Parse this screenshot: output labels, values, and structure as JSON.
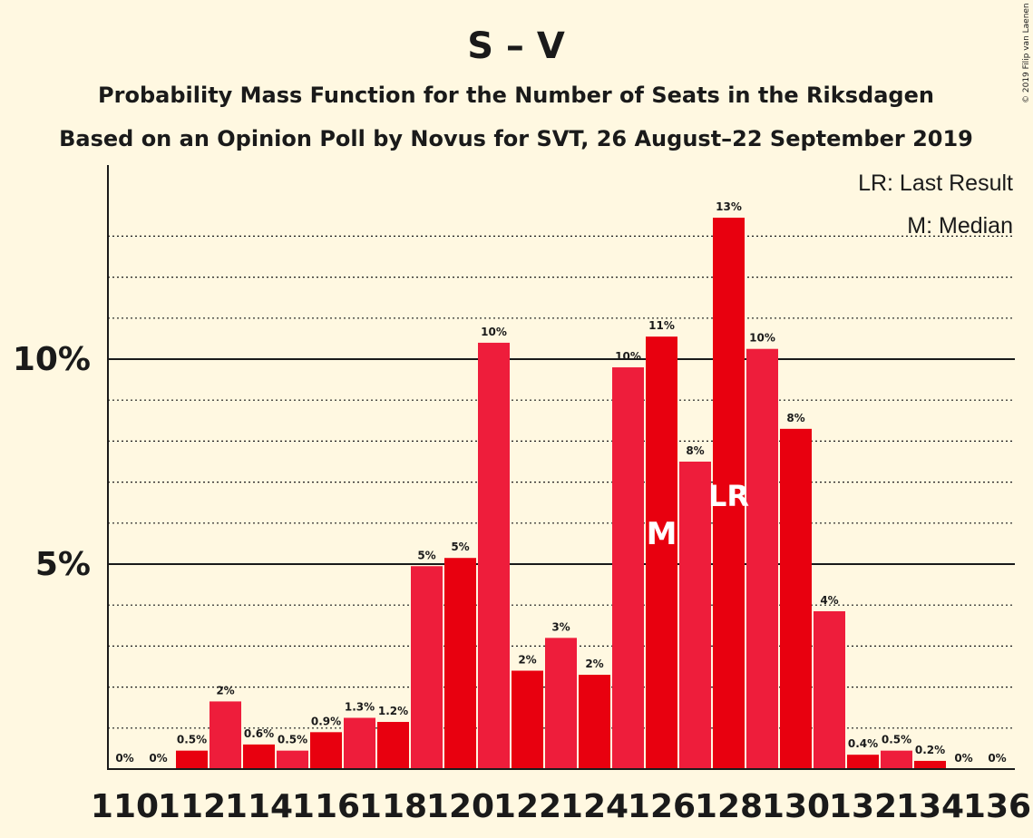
{
  "header": {
    "title": "S – V",
    "subtitle": "Probability Mass Function for the Number of Seats in the Riksdagen",
    "subtitle2": "Based on an Opinion Poll by Novus for SVT, 26 August–22 September 2019",
    "copyright": "© 2019 Filip van Laenen"
  },
  "legend": {
    "lr": "LR: Last Result",
    "m": "M: Median"
  },
  "chart_data": {
    "type": "bar",
    "title": "S – V",
    "ylim": [
      0,
      14.75
    ],
    "y_major_ticks": [
      5,
      10
    ],
    "y_major_labels": [
      "5%",
      "10%"
    ],
    "y_minor_ticks": [
      1,
      2,
      3,
      4,
      6,
      7,
      8,
      9,
      11,
      12,
      13
    ],
    "grid": true,
    "legend_placement": "top-right",
    "x_tick_labels": [
      "110",
      "112",
      "114",
      "116",
      "118",
      "120",
      "122",
      "124",
      "126",
      "128",
      "130",
      "132",
      "134",
      "136"
    ],
    "bar_colors": [
      "#E8000F",
      "#EE1D3B"
    ],
    "categories": [
      110,
      111,
      112,
      113,
      114,
      115,
      116,
      117,
      118,
      119,
      120,
      121,
      122,
      123,
      124,
      125,
      126,
      127,
      128,
      129,
      130,
      131,
      132,
      133,
      134,
      135,
      136
    ],
    "values": [
      0,
      0,
      0.45,
      1.65,
      0.6,
      0.45,
      0.9,
      1.25,
      1.15,
      4.95,
      5.15,
      10.4,
      2.4,
      3.2,
      2.3,
      9.8,
      10.55,
      7.5,
      13.45,
      10.25,
      8.3,
      3.85,
      0.35,
      0.45,
      0.2,
      0,
      0
    ],
    "data_labels": [
      "0%",
      "0%",
      "0.5%",
      "2%",
      "0.6%",
      "0.5%",
      "0.9%",
      "1.3%",
      "1.2%",
      "5%",
      "5%",
      "10%",
      "2%",
      "3%",
      "2%",
      "10%",
      "11%",
      "8%",
      "13%",
      "10%",
      "8%",
      "4%",
      "0.4%",
      "0.5%",
      "0.2%",
      "0%",
      "0%"
    ],
    "median_seat": 126,
    "median_marker": "M",
    "last_result_seat": 128,
    "last_result_marker": "LR"
  }
}
